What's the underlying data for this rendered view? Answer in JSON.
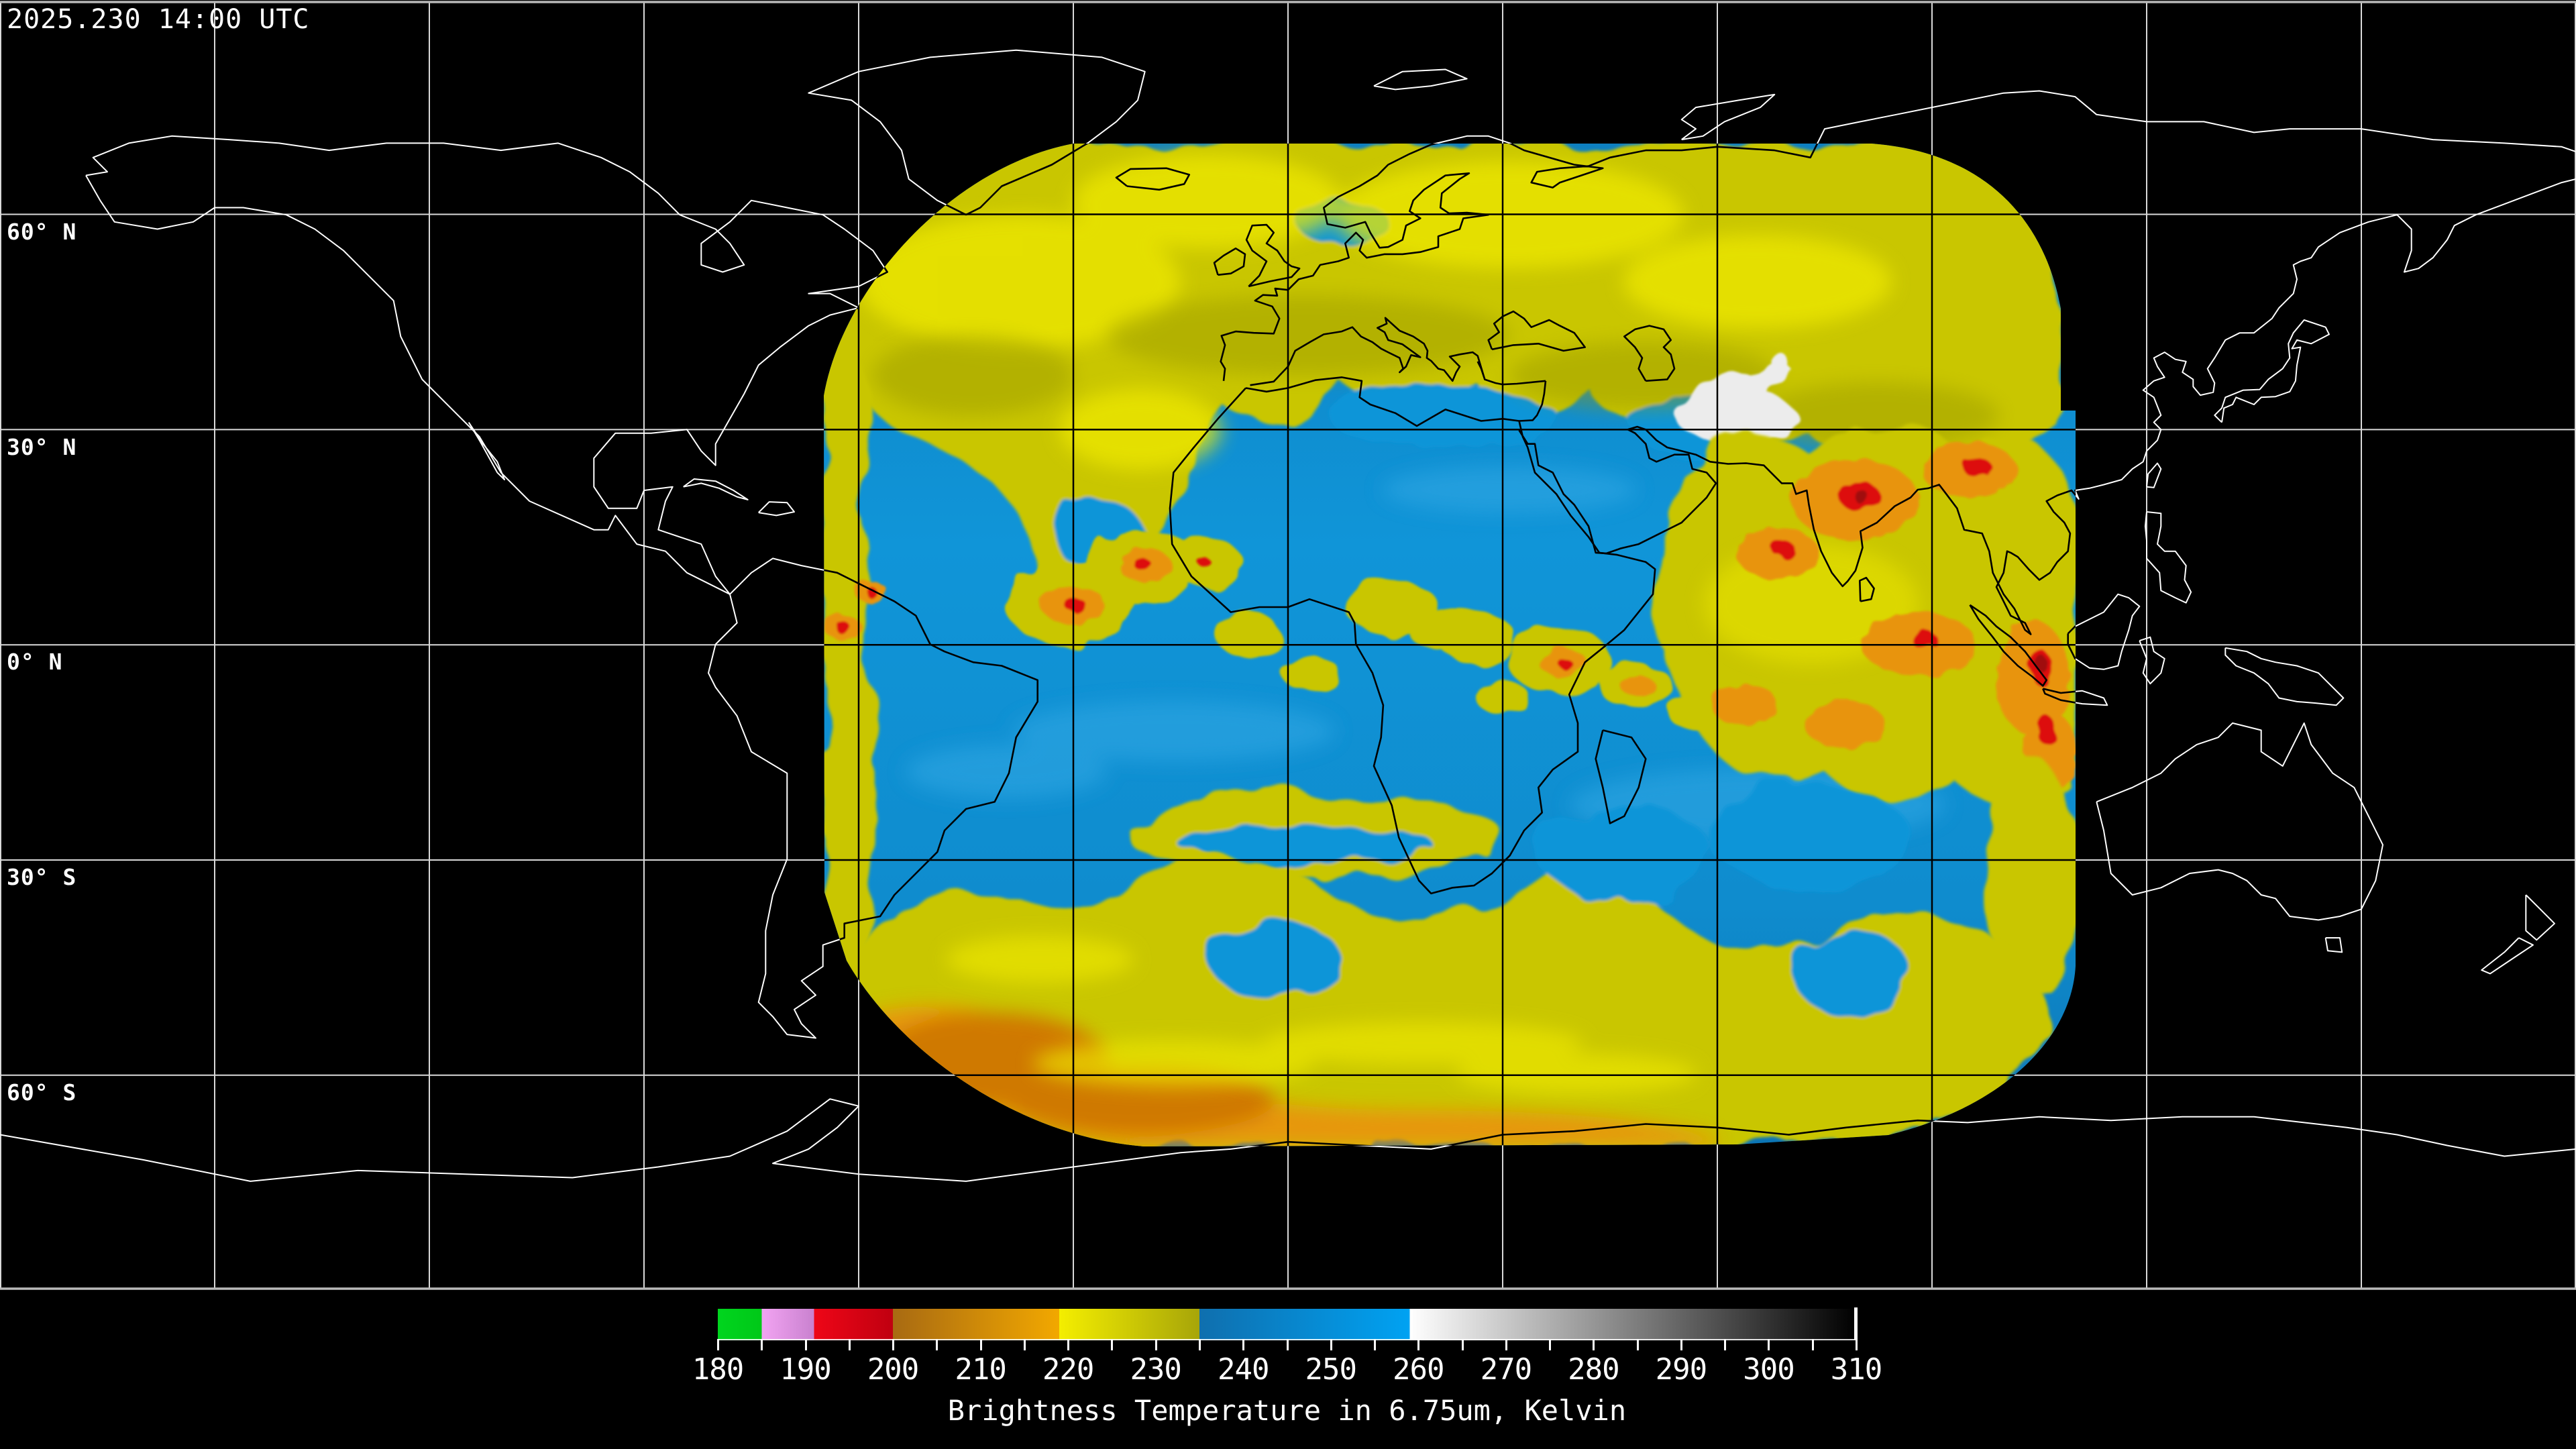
{
  "header": {
    "timestamp": "2025.230 14:00 UTC"
  },
  "map": {
    "lat_labels": [
      {
        "text": "60° N"
      },
      {
        "text": "30° N"
      },
      {
        "text": "0° N"
      },
      {
        "text": "30° S"
      },
      {
        "text": "60° S"
      }
    ],
    "grid": {
      "lon_step_deg": 30,
      "lat_step_deg": 30
    }
  },
  "colorbar": {
    "caption": "Brightness Temperature in 6.75um, Kelvin",
    "unit": "Kelvin",
    "min": 180,
    "max": 310,
    "minor_step": 5,
    "major_ticks": [
      180,
      190,
      200,
      210,
      220,
      230,
      240,
      250,
      260,
      270,
      280,
      290,
      300,
      310
    ],
    "segments": [
      {
        "from": 180,
        "to": 185,
        "from_color": "#00d51e",
        "to_color": "#00c818"
      },
      {
        "from": 185,
        "to": 191,
        "from_color": "#f2a4f2",
        "to_color": "#c981cf"
      },
      {
        "from": 191,
        "to": 200,
        "from_color": "#ee0617",
        "to_color": "#c00010"
      },
      {
        "from": 200,
        "to": 219,
        "from_color": "#a86a12",
        "to_color": "#f2a800"
      },
      {
        "from": 219,
        "to": 235,
        "from_color": "#f4ee00",
        "to_color": "#a7a509"
      },
      {
        "from": 235,
        "to": 259,
        "from_color": "#0f6fae",
        "to_color": "#00a2f2"
      },
      {
        "from": 259,
        "to": 310,
        "from_color": "#ffffff",
        "to_color": "#000000"
      }
    ]
  },
  "palette": {
    "background": "#000000",
    "grid_outside": "#d9d9d9",
    "border_line": "#b9b9b9",
    "coast_outside": "#ffffff",
    "grid_inside": "#000000",
    "coast_inside": "#000000",
    "data_blue_top": "#0d7fc0",
    "data_blue": "#1095d8",
    "data_blue_mid": "#0f8cce",
    "data_blue_bottom": "#0c74b4",
    "data_blue_light": "#30a8e4",
    "cloud_yellow": "#c9c600",
    "cloud_yellow_bright": "#eee800",
    "cloud_olive": "#999900",
    "cloud_orange": "#e8940a",
    "cloud_orange_deep": "#d07405",
    "cloud_red": "#dd1111",
    "cloud_red_dark": "#a00808",
    "warm_white": "#ececec",
    "text": "#ffffff"
  }
}
